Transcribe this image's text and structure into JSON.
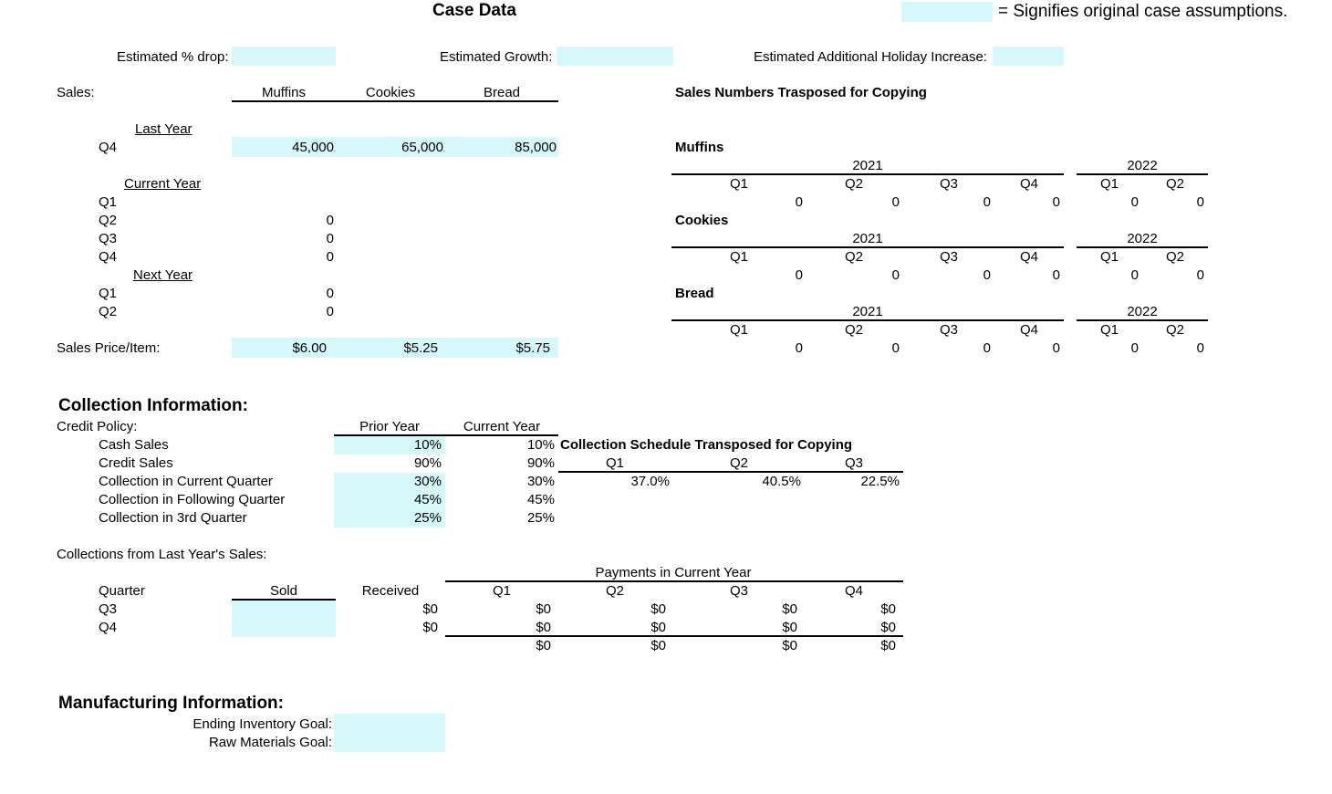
{
  "header": {
    "title": "Case Data",
    "legend_text": "= Signifies original case assumptions."
  },
  "assumptions": {
    "drop_label": "Estimated % drop:",
    "growth_label": "Estimated Growth:",
    "holiday_label": "Estimated Additional Holiday Increase:"
  },
  "sales": {
    "label": "Sales:",
    "columns": [
      "Muffins",
      "Cookies",
      "Bread"
    ],
    "last_year_label": "Last Year",
    "current_year_label": "Current Year",
    "next_year_label": "Next Year",
    "q1": "Q1",
    "q2": "Q2",
    "q3": "Q3",
    "q4": "Q4",
    "last_q4_values": [
      "45,000",
      "65,000",
      "85,000"
    ],
    "cur_q2": "0",
    "cur_q3": "0",
    "cur_q4": "0",
    "next_q1": "0",
    "next_q2": "0",
    "price_label": "Sales Price/Item:",
    "prices": [
      "$6.00",
      "$5.25",
      "$5.75"
    ]
  },
  "transposed": {
    "title": "Sales Numbers Trasposed for Copying",
    "year1": "2021",
    "year2": "2022",
    "quarters": [
      "Q1",
      "Q2",
      "Q3",
      "Q4",
      "Q1",
      "Q2"
    ],
    "products": [
      {
        "name": "Muffins",
        "values": [
          "0",
          "0",
          "0",
          "0",
          "0",
          "0"
        ]
      },
      {
        "name": "Cookies",
        "values": [
          "0",
          "0",
          "0",
          "0",
          "0",
          "0"
        ]
      },
      {
        "name": "Bread",
        "values": [
          "0",
          "0",
          "0",
          "0",
          "0",
          "0"
        ]
      }
    ]
  },
  "collection": {
    "title": "Collection Information:",
    "credit_policy_label": "Credit Policy:",
    "prior_year_label": "Prior Year",
    "current_year_label": "Current Year",
    "rows": [
      {
        "label": "Cash Sales",
        "prior": "10%",
        "current": "10%"
      },
      {
        "label": "Credit Sales",
        "prior": "90%",
        "current": "90%"
      },
      {
        "label": "Collection in Current Quarter",
        "prior": "30%",
        "current": "30%"
      },
      {
        "label": "Collection in Following Quarter",
        "prior": "45%",
        "current": "45%"
      },
      {
        "label": "Collection in 3rd Quarter",
        "prior": "25%",
        "current": "25%"
      }
    ],
    "schedule_title": "Collection Schedule Transposed for Copying",
    "schedule_quarters": [
      "Q1",
      "Q2",
      "Q3"
    ],
    "schedule_values": [
      "37.0%",
      "40.5%",
      "22.5%"
    ]
  },
  "last_year_collections": {
    "title": "Collections from Last Year's Sales:",
    "payments_label": "Payments in Current Year",
    "quarter_label": "Quarter",
    "sold_label": "Sold",
    "received_label": "Received",
    "quarters": [
      "Q1",
      "Q2",
      "Q3",
      "Q4"
    ],
    "rows": [
      {
        "quarter": "Q3",
        "received": "$0",
        "values": [
          "$0",
          "$0",
          "$0",
          "$0"
        ]
      },
      {
        "quarter": "Q4",
        "received": "$0",
        "values": [
          "$0",
          "$0",
          "$0",
          "$0"
        ]
      }
    ],
    "totals": [
      "$0",
      "$0",
      "$0",
      "$0"
    ]
  },
  "manufacturing": {
    "title": "Manufacturing Information:",
    "ending_inventory_label": "Ending Inventory Goal:",
    "raw_materials_label": "Raw Materials Goal:"
  },
  "colors": {
    "input_cell": "#d6f8fb"
  }
}
